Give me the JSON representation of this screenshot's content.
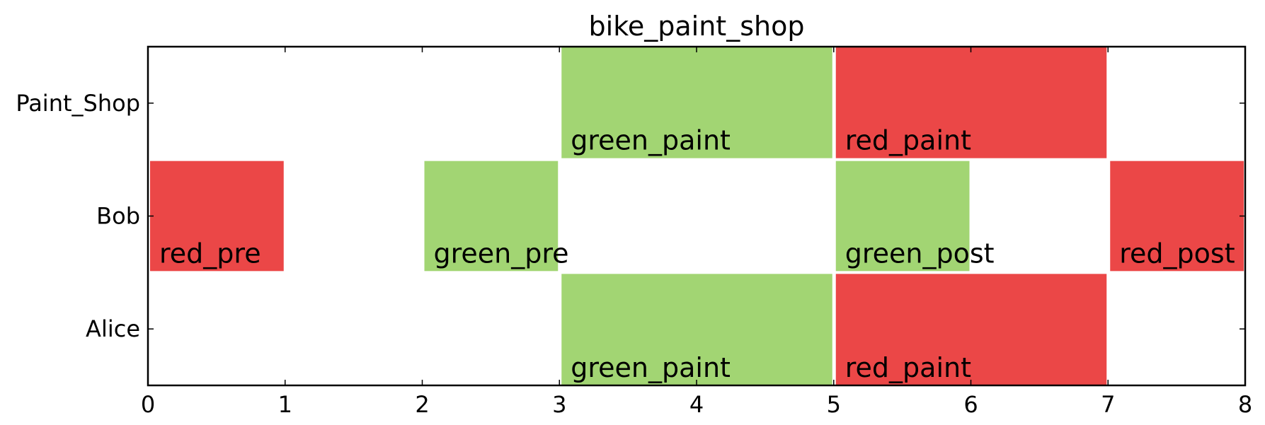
{
  "chart_data": {
    "type": "gantt",
    "title": "bike_paint_shop",
    "xlim": [
      0,
      8
    ],
    "x_ticks": [
      "0",
      "1",
      "2",
      "3",
      "4",
      "5",
      "6",
      "7",
      "8"
    ],
    "rows": [
      "Paint_Shop",
      "Bob",
      "Alice"
    ],
    "grid": false,
    "colors": {
      "red": "#eb4747",
      "green": "#a2d573"
    },
    "tasks": [
      {
        "row": "Paint_Shop",
        "label": "green_paint",
        "start": 3,
        "end": 5,
        "color": "green"
      },
      {
        "row": "Paint_Shop",
        "label": "red_paint",
        "start": 5,
        "end": 7,
        "color": "red"
      },
      {
        "row": "Bob",
        "label": "red_pre",
        "start": 0,
        "end": 1,
        "color": "red"
      },
      {
        "row": "Bob",
        "label": "green_pre",
        "start": 2,
        "end": 3,
        "color": "green"
      },
      {
        "row": "Bob",
        "label": "green_post",
        "start": 5,
        "end": 6,
        "color": "green"
      },
      {
        "row": "Bob",
        "label": "red_post",
        "start": 7,
        "end": 8,
        "color": "red"
      },
      {
        "row": "Alice",
        "label": "green_paint",
        "start": 3,
        "end": 5,
        "color": "green"
      },
      {
        "row": "Alice",
        "label": "red_paint",
        "start": 5,
        "end": 7,
        "color": "red"
      }
    ]
  }
}
